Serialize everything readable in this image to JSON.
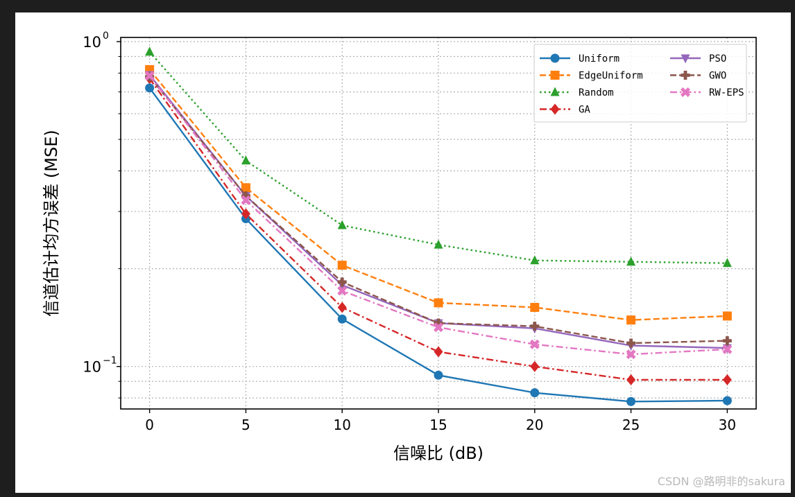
{
  "watermark": "CSDN @路明非的sakura",
  "chart_data": {
    "type": "line",
    "title": "",
    "xlabel": "信噪比 (dB)",
    "ylabel": "信道估计均方误差 (MSE)",
    "x": [
      0,
      5,
      10,
      15,
      20,
      25,
      30
    ],
    "xticks": [
      "0",
      "5",
      "10",
      "15",
      "20",
      "25",
      "30"
    ],
    "xlim": [
      -1.5,
      31.5
    ],
    "yscale": "log",
    "ylim": [
      0.074,
      1.03
    ],
    "yticks": [
      {
        "value": 1.0,
        "base": "10",
        "exp": "0"
      },
      {
        "value": 0.1,
        "base": "10",
        "exp": "−1"
      }
    ],
    "grid": true,
    "legend_position": "top-right",
    "legend_columns": 2,
    "series": [
      {
        "name": "Uniform",
        "color": "#1f77b4",
        "dash": "solid",
        "marker": "circle",
        "values": [
          0.72,
          0.285,
          0.14,
          0.094,
          0.083,
          0.078,
          0.0785
        ]
      },
      {
        "name": "EdgeUniform",
        "color": "#ff7f0e",
        "dash": "dashed",
        "marker": "square",
        "values": [
          0.82,
          0.355,
          0.205,
          0.157,
          0.152,
          0.139,
          0.143
        ]
      },
      {
        "name": "Random",
        "color": "#2ca02c",
        "dash": "dotted",
        "marker": "triangle-up",
        "values": [
          0.93,
          0.43,
          0.272,
          0.237,
          0.212,
          0.21,
          0.208
        ]
      },
      {
        "name": "GA",
        "color": "#d62728",
        "dash": "dashdot",
        "marker": "diamond",
        "values": [
          0.77,
          0.295,
          0.152,
          0.111,
          0.1,
          0.091,
          0.091
        ]
      },
      {
        "name": "PSO",
        "color": "#9467bd",
        "dash": "solid",
        "marker": "triangle-down",
        "values": [
          0.79,
          0.335,
          0.178,
          0.136,
          0.131,
          0.116,
          0.114
        ]
      },
      {
        "name": "GWO",
        "color": "#8c564b",
        "dash": "dashed",
        "marker": "plus",
        "values": [
          0.78,
          0.335,
          0.182,
          0.136,
          0.133,
          0.118,
          0.12
        ]
      },
      {
        "name": "RW-EPS",
        "color": "#e377c2",
        "dash": "dashdot",
        "marker": "x",
        "values": [
          0.785,
          0.325,
          0.171,
          0.132,
          0.117,
          0.109,
          0.113
        ]
      }
    ]
  }
}
